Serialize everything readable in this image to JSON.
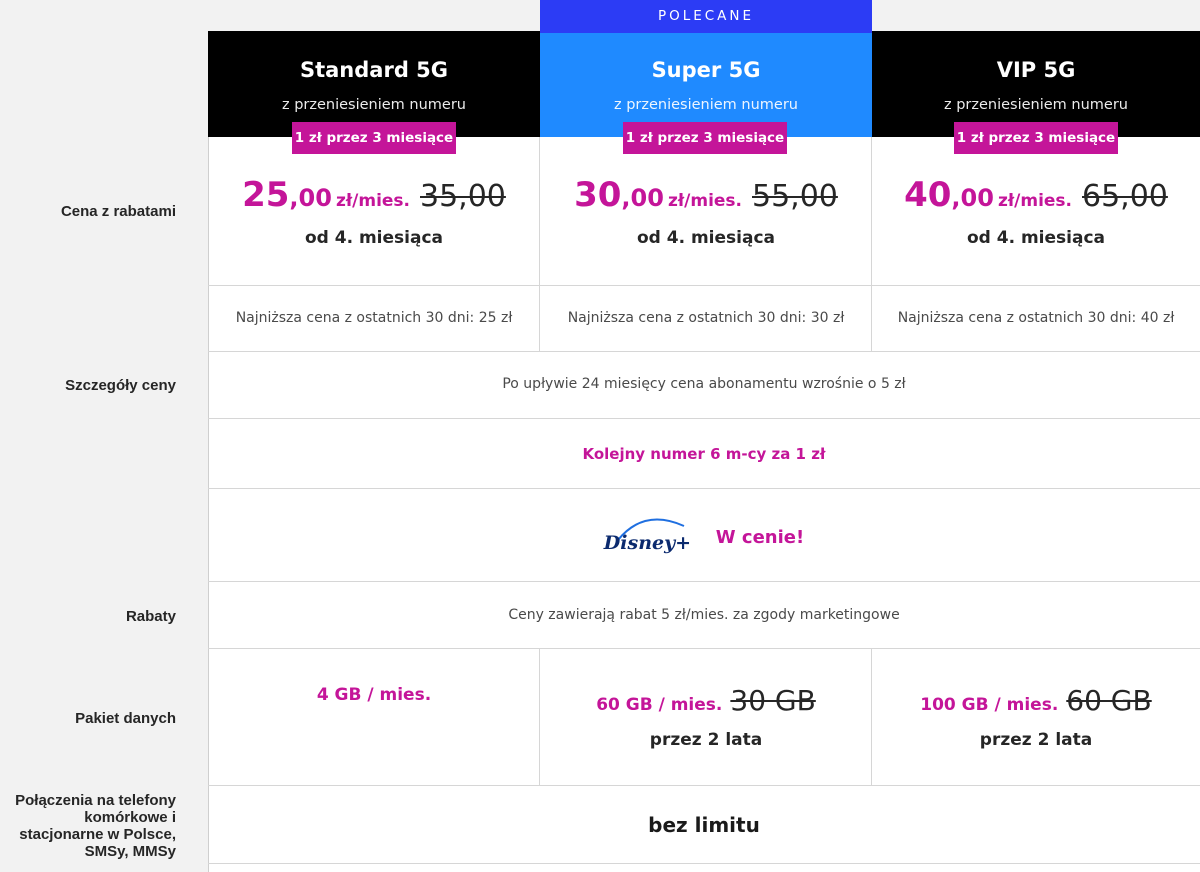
{
  "side_labels": {
    "price": "Cena z rabatami",
    "details": "Szczegóły ceny",
    "discounts": "Rabaty",
    "data": "Pakiet danych",
    "calls_line1": "Połączenia na telefony",
    "calls_line2": "komórkowe i",
    "calls_line3": "stacjonarne w Polsce,",
    "calls_line4": "SMSy, MMSy"
  },
  "recommended_label": "POLECANE",
  "plans": [
    {
      "name": "Standard 5G",
      "subtitle": "z przeniesieniem numeru",
      "promo": "1 zł przez 3 miesiące",
      "price_int": "25",
      "price_dec": ",00",
      "price_unit": "zł/mies.",
      "price_old": "35,00",
      "from_month": "od 4. miesiąca",
      "lowest_price": "Najniższa cena z ostatnich 30 dni: 25 zł",
      "data": "4 GB / mies.",
      "data_old": "",
      "data_period": ""
    },
    {
      "name": "Super 5G",
      "subtitle": "z przeniesieniem numeru",
      "promo": "1 zł przez 3 miesiące",
      "price_int": "30",
      "price_dec": ",00",
      "price_unit": "zł/mies.",
      "price_old": "55,00",
      "from_month": "od 4. miesiąca",
      "lowest_price": "Najniższa cena z ostatnich 30 dni: 30 zł",
      "data": "60 GB / mies.",
      "data_old": "30 GB",
      "data_period": "przez 2 lata"
    },
    {
      "name": "VIP 5G",
      "subtitle": "z przeniesieniem numeru",
      "promo": "1 zł przez 3 miesiące",
      "price_int": "40",
      "price_dec": ",00",
      "price_unit": "zł/mies.",
      "price_old": "65,00",
      "from_month": "od 4. miesiąca",
      "lowest_price": "Najniższa cena z ostatnich 30 dni: 40 zł",
      "data": "100 GB / mies.",
      "data_old": "60 GB",
      "data_period": "przez 2 lata"
    }
  ],
  "price_details": "Po upływie 24 miesięcy cena abonamentu wzrośnie o 5 zł",
  "next_number": "Kolejny numer 6 m-cy za 1 zł",
  "disney": {
    "logo_text": "Disney+",
    "label": "W cenie!"
  },
  "discount_text": "Ceny zawierają rabat 5 zł/mies. za zgody marketingowe",
  "calls_value": "bez limitu",
  "colors": {
    "magenta": "#c41599",
    "blue_header": "#1f8aff",
    "recommended": "#2c3cf5",
    "black_header": "#000000"
  }
}
